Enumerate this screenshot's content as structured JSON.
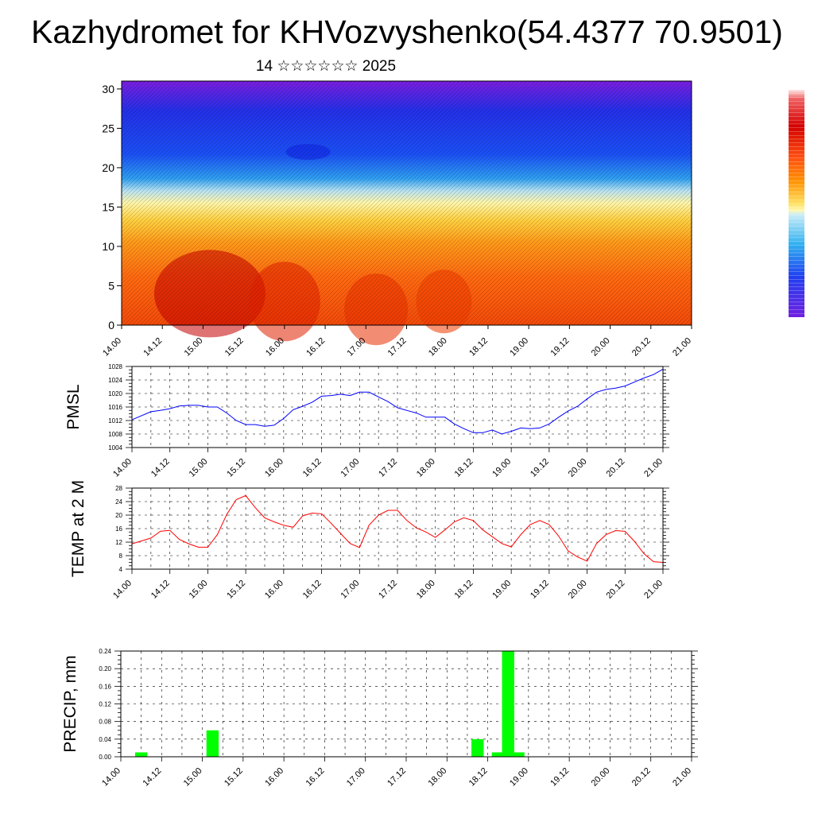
{
  "title": "Kazhydromet for KHVozvyshenko(54.4377 70.9501)",
  "subtitle": "14 ☆☆☆☆☆☆ 2025",
  "chart_data": [
    {
      "type": "heatmap",
      "description_free": true,
      "yticks": [
        0,
        5,
        10,
        15,
        20,
        25,
        30
      ],
      "ylim": [
        0,
        31
      ],
      "xticks": [
        "14.00",
        "14.12",
        "15.00",
        "15.12",
        "16.00",
        "16.12",
        "17.00",
        "17.12",
        "18.00",
        "18.12",
        "19.00",
        "19.12",
        "20.00",
        "20.12",
        "21.00"
      ],
      "xlim": [
        0,
        168
      ],
      "colorbar": [
        "#ffffff",
        "#d40000",
        "#ff7000",
        "#ffd000",
        "#fff8b0",
        "#b8e8f8",
        "#30a8f0",
        "#1848f0",
        "#6010e0"
      ]
    },
    {
      "type": "line",
      "ylabel": "PMSL",
      "ylim": [
        1004,
        1028
      ],
      "yticks": [
        1004,
        1008,
        1012,
        1016,
        1020,
        1024,
        1028
      ],
      "xticks": [
        "14.00",
        "14.12",
        "15.00",
        "15.12",
        "16.00",
        "16.12",
        "17.00",
        "17.12",
        "18.00",
        "18.12",
        "19.00",
        "19.12",
        "20.00",
        "20.12",
        "21.00"
      ],
      "xlim": [
        0,
        168
      ],
      "color": "#0000ff",
      "x": [
        0,
        6,
        9,
        12,
        15,
        18,
        21,
        24,
        27,
        30,
        33,
        36,
        39,
        42,
        45,
        48,
        51,
        54,
        57,
        60,
        63,
        66,
        69,
        72,
        75,
        78,
        81,
        84,
        87,
        90,
        93,
        96,
        99,
        102,
        105,
        108,
        111,
        114,
        117,
        120,
        123,
        126,
        129,
        132,
        135,
        138,
        141,
        144,
        147,
        150,
        153,
        156,
        159,
        162,
        165,
        168
      ],
      "values": [
        1012.2,
        1014.6,
        1015.0,
        1015.5,
        1016.3,
        1016.5,
        1016.5,
        1016.0,
        1016.0,
        1014.2,
        1012.0,
        1010.8,
        1010.8,
        1010.3,
        1010.6,
        1012.6,
        1015.2,
        1016.2,
        1017.4,
        1019.2,
        1019.4,
        1019.8,
        1019.4,
        1020.4,
        1020.4,
        1019.0,
        1017.6,
        1015.8,
        1015.0,
        1014.2,
        1013.0,
        1013.0,
        1013.0,
        1011.0,
        1009.6,
        1008.4,
        1008.4,
        1009.2,
        1008.0,
        1008.8,
        1009.8,
        1009.6,
        1009.8,
        1011.0,
        1013.0,
        1014.8,
        1016.2,
        1018.4,
        1020.4,
        1021.2,
        1021.6,
        1022.2,
        1023.4,
        1024.6,
        1025.6,
        1027.2
      ]
    },
    {
      "type": "line",
      "ylabel": "TEMP at 2 M",
      "ylim": [
        4,
        28
      ],
      "yticks": [
        4,
        8,
        12,
        16,
        20,
        24,
        28
      ],
      "xticks": [
        "14.00",
        "14.12",
        "15.00",
        "15.12",
        "16.00",
        "16.12",
        "17.00",
        "17.12",
        "18.00",
        "18.12",
        "19.00",
        "19.12",
        "20.00",
        "20.12",
        "21.00"
      ],
      "xlim": [
        0,
        168
      ],
      "color": "#ff0000",
      "x": [
        0,
        6,
        9,
        12,
        15,
        18,
        21,
        24,
        27,
        30,
        33,
        36,
        39,
        42,
        45,
        48,
        51,
        54,
        57,
        60,
        63,
        66,
        69,
        72,
        75,
        78,
        81,
        84,
        87,
        90,
        93,
        96,
        99,
        102,
        105,
        108,
        111,
        114,
        117,
        120,
        123,
        126,
        129,
        132,
        135,
        138,
        141,
        144,
        147,
        150,
        153,
        156,
        159,
        162,
        165,
        168
      ],
      "values": [
        11.5,
        13.2,
        15.2,
        15.5,
        12.8,
        11.5,
        10.5,
        10.5,
        14.2,
        20.2,
        24.6,
        25.8,
        22.2,
        19.2,
        18.0,
        17.0,
        16.4,
        19.8,
        20.6,
        20.4,
        17.6,
        14.6,
        11.6,
        10.4,
        17.0,
        20.0,
        21.4,
        21.4,
        18.4,
        16.2,
        15.0,
        13.4,
        15.6,
        18.0,
        19.2,
        18.4,
        15.6,
        13.6,
        11.6,
        10.6,
        14.2,
        17.2,
        18.4,
        17.2,
        13.8,
        9.4,
        7.6,
        6.4,
        11.6,
        14.2,
        15.4,
        15.2,
        12.2,
        8.6,
        6.2,
        6.0
      ]
    },
    {
      "type": "bar",
      "ylabel": "PRECIP, mm",
      "ylim": [
        0,
        0.24
      ],
      "yticks": [
        "0.00",
        "0.04",
        "0.08",
        "0.12",
        "0.16",
        "0.20",
        "0.24"
      ],
      "xticks": [
        "14.00",
        "14.12",
        "15.00",
        "15.12",
        "16.00",
        "16.12",
        "17.00",
        "17.12",
        "18.00",
        "18.12",
        "19.00",
        "19.12",
        "20.00",
        "20.12",
        "21.00"
      ],
      "xlim": [
        0,
        168
      ],
      "color": "#00ff00",
      "x": [
        6,
        27,
        105,
        111,
        114,
        117
      ],
      "values": [
        0.01,
        0.06,
        0.04,
        0.01,
        0.24,
        0.01
      ]
    }
  ]
}
